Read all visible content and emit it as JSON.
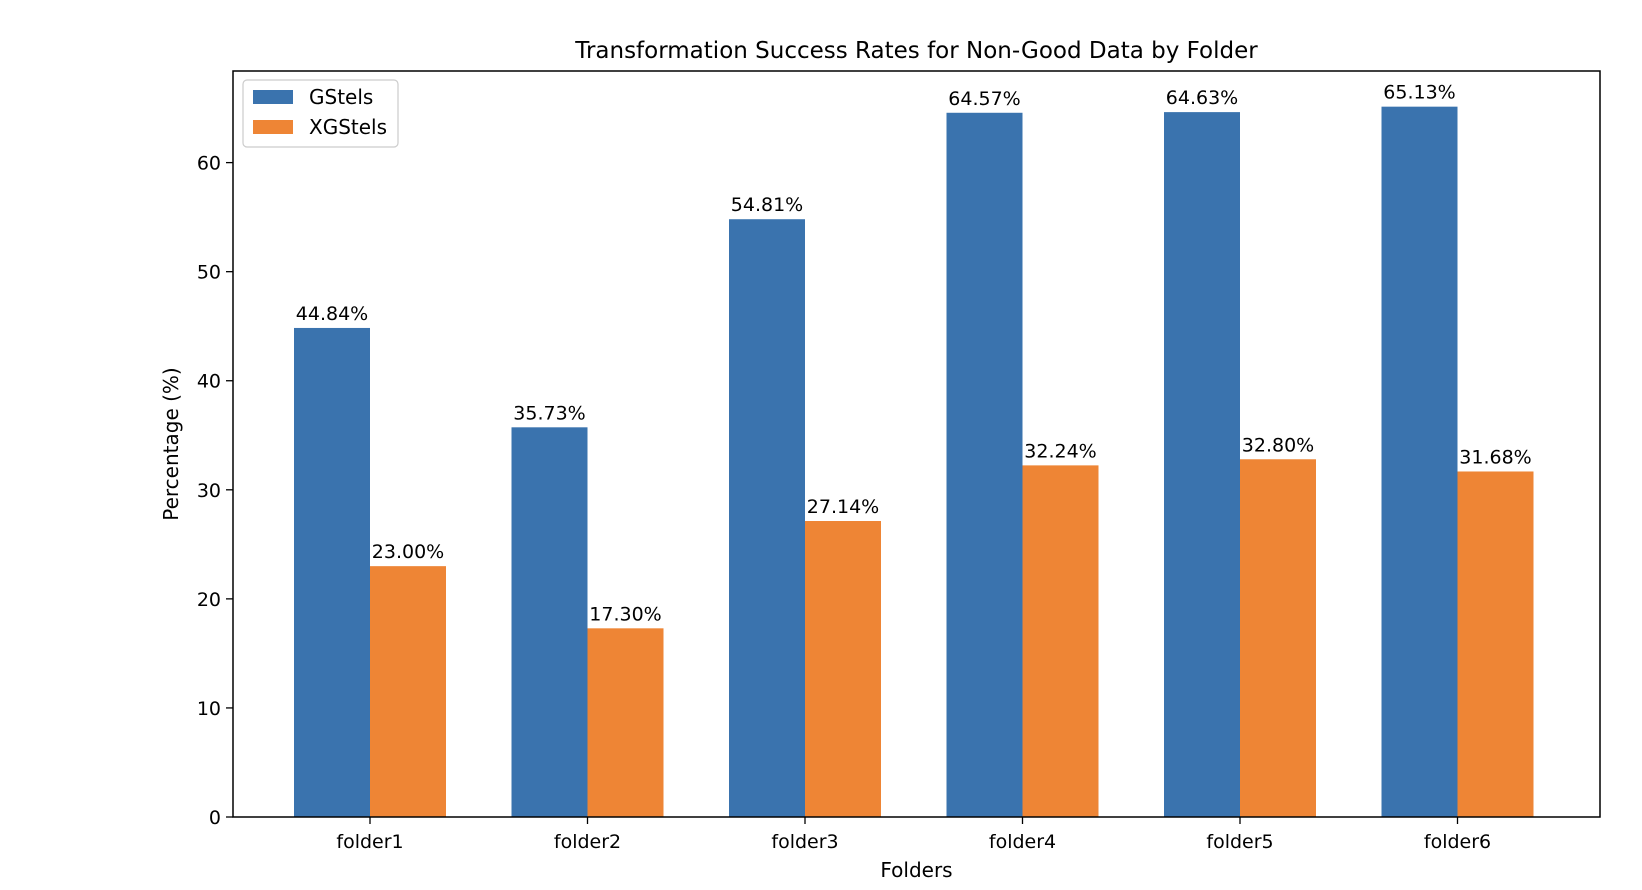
{
  "chart_data": {
    "type": "bar",
    "title": "Transformation Success Rates for Non-Good Data by Folder",
    "xlabel": "Folders",
    "ylabel": "Percentage (%)",
    "categories": [
      "folder1",
      "folder2",
      "folder3",
      "folder4",
      "folder5",
      "folder6"
    ],
    "series": [
      {
        "name": "GStels",
        "color": "#3a73ae",
        "values": [
          44.84,
          35.73,
          54.81,
          64.57,
          64.63,
          65.13
        ],
        "labels": [
          "44.84%",
          "35.73%",
          "54.81%",
          "64.57%",
          "64.63%",
          "65.13%"
        ]
      },
      {
        "name": "XGStels",
        "color": "#ee8535",
        "values": [
          23.0,
          17.3,
          27.14,
          32.24,
          32.8,
          31.68
        ],
        "labels": [
          "23.00%",
          "17.30%",
          "27.14%",
          "32.24%",
          "32.80%",
          "31.68%"
        ]
      }
    ],
    "ylim": [
      0,
      68.4
    ],
    "yticks": [
      0,
      10,
      20,
      30,
      40,
      50,
      60
    ],
    "grid": false,
    "legend_position": "top-left"
  }
}
